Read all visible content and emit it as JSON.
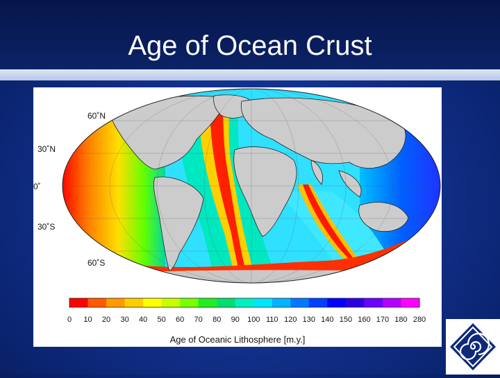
{
  "slide": {
    "title": "Age of Ocean Crust"
  },
  "map": {
    "latitude_labels": [
      "60˚N",
      "30˚N",
      "0˚",
      "30˚S",
      "60˚S"
    ]
  },
  "colorbar": {
    "title": "Age of Oceanic Lithosphere [m.y.]",
    "ticks": [
      "0",
      "10",
      "20",
      "30",
      "40",
      "50",
      "60",
      "70",
      "80",
      "90",
      "100",
      "110",
      "120",
      "130",
      "140",
      "150",
      "160",
      "170",
      "180",
      "280"
    ],
    "colors": [
      "#ff0000",
      "#ff5a00",
      "#ff9a00",
      "#ffce00",
      "#ffff00",
      "#c8ff00",
      "#78ff00",
      "#20f020",
      "#00e070",
      "#00f0c0",
      "#00e6ff",
      "#00b4ff",
      "#0078ff",
      "#0040ff",
      "#0000ff",
      "#2a00e0",
      "#6a00ff",
      "#b400ff",
      "#ff00ff"
    ]
  },
  "logo": {
    "icon": "spiral-diamond-logo"
  }
}
